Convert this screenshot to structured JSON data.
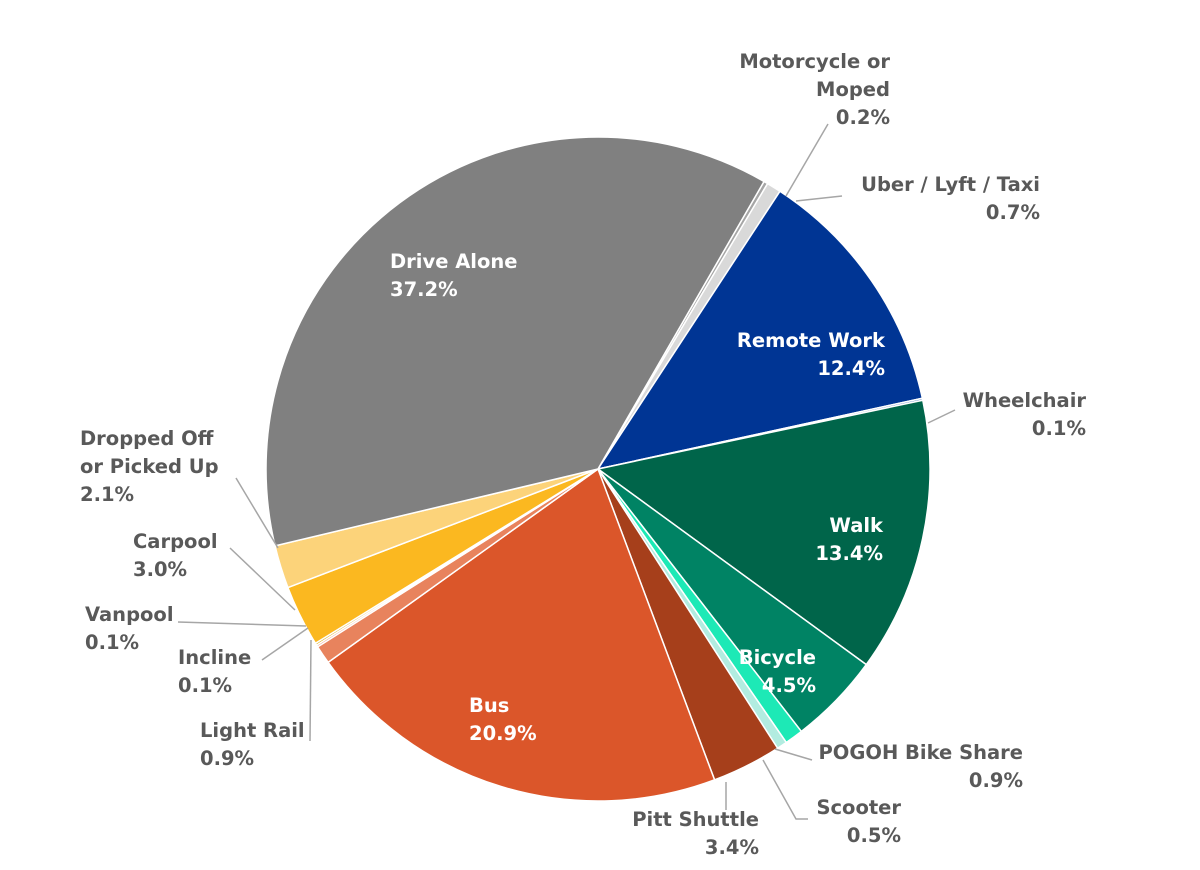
{
  "chart_data": {
    "type": "pie",
    "title": "",
    "slices": [
      {
        "label": "Motorcycle or Moped",
        "lines": [
          "Motorcycle or",
          "Moped"
        ],
        "value": 0.2,
        "display": "0.2%",
        "color": "#a6a6a6"
      },
      {
        "label": "Uber / Lyft / Taxi",
        "lines": [
          "Uber / Lyft / Taxi"
        ],
        "value": 0.7,
        "display": "0.7%",
        "color": "#d9d9d9"
      },
      {
        "label": "Remote Work",
        "lines": [
          "Remote Work"
        ],
        "value": 12.4,
        "display": "12.4%",
        "color": "#003594"
      },
      {
        "label": "Wheelchair",
        "lines": [
          "Wheelchair"
        ],
        "value": 0.1,
        "display": "0.1%",
        "color": "#6e8fc7"
      },
      {
        "label": "Walk",
        "lines": [
          "Walk"
        ],
        "value": 13.4,
        "display": "13.4%",
        "color": "#00654a"
      },
      {
        "label": "Bicycle",
        "lines": [
          "Bicycle"
        ],
        "value": 4.5,
        "display": "4.5%",
        "color": "#008364"
      },
      {
        "label": "POGOH Bike Share",
        "lines": [
          "POGOH Bike Share"
        ],
        "value": 0.9,
        "display": "0.9%",
        "color": "#1de9b6"
      },
      {
        "label": "Scooter",
        "lines": [
          "Scooter"
        ],
        "value": 0.5,
        "display": "0.5%",
        "color": "#b2ece0"
      },
      {
        "label": "Pitt Shuttle",
        "lines": [
          "Pitt Shuttle"
        ],
        "value": 3.4,
        "display": "3.4%",
        "color": "#a63f1b"
      },
      {
        "label": "Bus",
        "lines": [
          "Bus"
        ],
        "value": 20.9,
        "display": "20.9%",
        "color": "#db562a"
      },
      {
        "label": "Light Rail",
        "lines": [
          "Light Rail"
        ],
        "value": 0.9,
        "display": "0.9%",
        "color": "#e8835d"
      },
      {
        "label": "Incline",
        "lines": [
          "Incline"
        ],
        "value": 0.1,
        "display": "0.1%",
        "color": "#f2a685"
      },
      {
        "label": "Vanpool",
        "lines": [
          "Vanpool"
        ],
        "value": 0.1,
        "display": "0.1%",
        "color": "#d8a400"
      },
      {
        "label": "Carpool",
        "lines": [
          "Carpool"
        ],
        "value": 3.0,
        "display": "3.0%",
        "color": "#fbb820"
      },
      {
        "label": "Dropped Off or Picked Up",
        "lines": [
          "Dropped Off",
          "or Picked Up"
        ],
        "value": 2.1,
        "display": "2.1%",
        "color": "#fcd37a"
      },
      {
        "label": "Drive Alone",
        "lines": [
          "Drive Alone"
        ],
        "value": 37.2,
        "display": "37.2%",
        "color": "#808080"
      }
    ],
    "legend": "none",
    "data_labels": "category name and percentage"
  }
}
